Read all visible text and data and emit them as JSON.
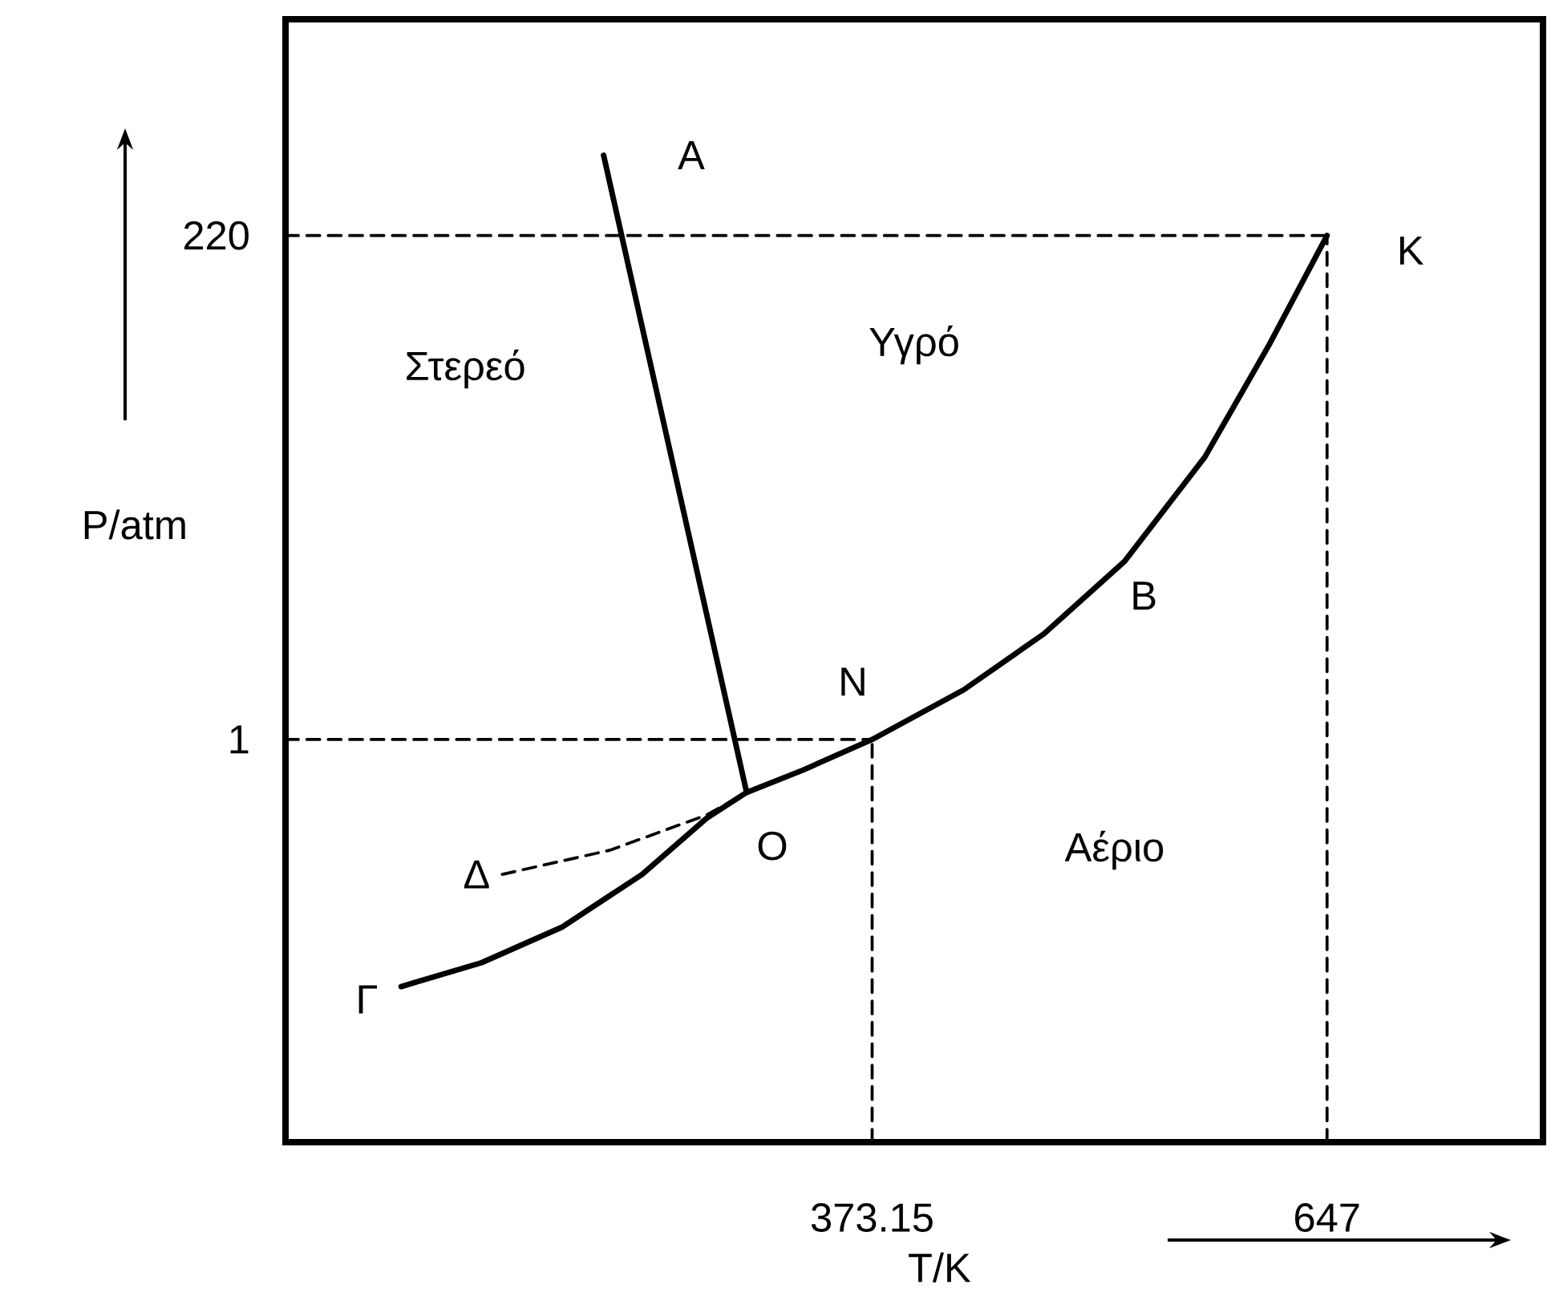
{
  "chart_data": {
    "type": "line",
    "xlabel": "T/K",
    "ylabel": "P/atm",
    "xlim": [
      20,
      777
    ],
    "ylim": [
      -174,
      314
    ],
    "xticks": [
      373.15,
      647
    ],
    "yticks": [
      1,
      220
    ],
    "grid": false,
    "marker": "none",
    "series": [
      {
        "color": "#000000",
        "line_style": "solid",
        "x": [
          211.5,
          297.6
        ],
        "values": [
          254.9,
          -22.0
        ]
      },
      {
        "color": "#000000",
        "line_style": "solid",
        "x": [
          89.6,
          138,
          186.3,
          234.7,
          273.5,
          297.6,
          331.5,
          373.15,
          428.3,
          476.7,
          525.1,
          573.5,
          612.2,
          647
        ],
        "values": [
          -106.4,
          -96,
          -80.6,
          -57.6,
          -33.2,
          -22.0,
          -12.3,
          1,
          22.6,
          47.0,
          78.4,
          123.8,
          172.6,
          220
        ]
      },
      {
        "color": "#000000",
        "line_style": "dashed",
        "x": [
          150.5,
          215.4,
          273.5,
          297.6
        ],
        "values": [
          -57.6,
          -47.1,
          -31.8,
          -22.0
        ]
      },
      {
        "color": "#000000",
        "line_style": "dashed",
        "x": [
          20,
          647
        ],
        "values": [
          220,
          220
        ]
      },
      {
        "color": "#000000",
        "line_style": "dashed",
        "x": [
          647,
          647
        ],
        "values": [
          -174,
          220
        ]
      },
      {
        "color": "#000000",
        "line_style": "dashed",
        "x": [
          20,
          373.15
        ],
        "values": [
          1,
          1
        ]
      },
      {
        "color": "#000000",
        "line_style": "dashed",
        "x": [
          373.15,
          373.15
        ],
        "values": [
          -174,
          1
        ]
      }
    ],
    "annotations": [
      {
        "text": "A",
        "x": 211.5,
        "y": 254.9
      },
      {
        "text": "K",
        "x": 647,
        "y": 220
      },
      {
        "text": "B",
        "x": 525.1,
        "y": 78.4
      },
      {
        "text": "N",
        "x": 373.15,
        "y": 1
      },
      {
        "text": "O",
        "x": 297.6,
        "y": -22.0
      },
      {
        "text": "Δ",
        "x": 150.5,
        "y": -57.6
      },
      {
        "text": "Γ",
        "x": 89.6,
        "y": -106.4
      },
      "Στερεό",
      "Υγρό",
      "Αέριο"
    ]
  }
}
